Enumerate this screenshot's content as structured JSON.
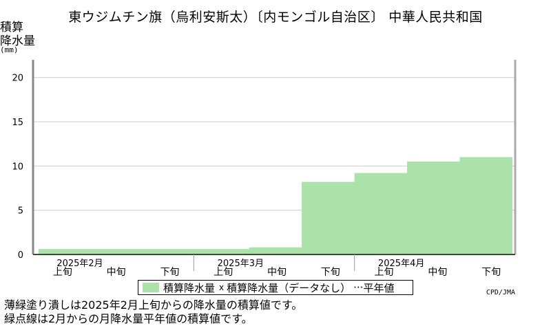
{
  "title": "東ウジムチン旗（烏利安斯太）〔内モンゴル自治区〕 中華人民共和国",
  "ylabel_lines": [
    "積算",
    "降水量"
  ],
  "yunit": "(mm)",
  "credit": "CPD/JMA",
  "notes": [
    "薄緑塗り潰しは2025年2月上旬からの降水量の積算値です。",
    "緑点線は2月からの月降水量平年値の積算値です。"
  ],
  "legend": {
    "item1": "積算降水量",
    "item2_mark": "x",
    "item2": "積算降水量（データなし）",
    "item3_mark": "···",
    "item3": "平年値"
  },
  "chart_data": {
    "type": "area",
    "ylim": [
      0,
      22
    ],
    "yticks": [
      0,
      5,
      10,
      15,
      20
    ],
    "grid": true,
    "months": [
      "2025年2月",
      "2025年3月",
      "2025年4月"
    ],
    "categories": [
      "上旬",
      "中旬",
      "下旬",
      "上旬",
      "中旬",
      "下旬",
      "上旬",
      "中旬",
      "下旬"
    ],
    "series": [
      {
        "name": "積算降水量",
        "values": [
          0.6,
          0.6,
          0.6,
          0.6,
          0.8,
          8.2,
          9.2,
          10.5,
          11.0
        ]
      }
    ],
    "colors": {
      "fill": "#aae2aa",
      "grid": "#cccccc",
      "axis": "#888888",
      "frame": "#aaaaaa"
    }
  }
}
